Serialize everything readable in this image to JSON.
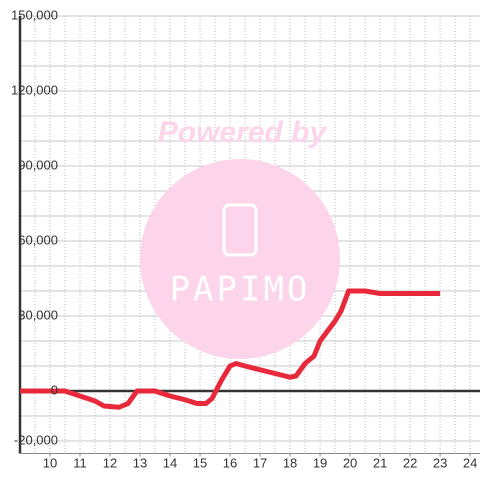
{
  "chart_data": {
    "type": "line",
    "watermark": {
      "top": "Powered by",
      "logo": "PAPIMO"
    },
    "x": [
      9,
      10.5,
      11,
      11.5,
      11.8,
      12.3,
      12.6,
      12.9,
      13.5,
      14,
      14.5,
      14.9,
      15.2,
      15.4,
      15.7,
      16,
      16.2,
      16.5,
      17,
      17.5,
      18,
      18.2,
      18.5,
      18.8,
      19,
      19.5,
      19.7,
      19.95,
      20.5,
      21,
      23
    ],
    "series": [
      {
        "color": "#e8293b",
        "values": [
          0,
          0,
          -2000,
          -4000,
          -6000,
          -6500,
          -5000,
          0,
          0,
          -2000,
          -3500,
          -5000,
          -5000,
          -3000,
          4000,
          10000,
          11000,
          10000,
          8500,
          7000,
          5500,
          6000,
          11000,
          14000,
          20000,
          28000,
          32000,
          40000,
          40000,
          39000,
          39000
        ]
      }
    ],
    "xlim": [
      9,
      24.33
    ],
    "xticks": [
      10,
      11,
      12,
      13,
      14,
      15,
      16,
      17,
      18,
      19,
      20,
      21,
      22,
      23,
      24
    ],
    "xgrid": [
      9.5,
      10,
      10.5,
      11,
      11.5,
      12,
      12.5,
      13,
      13.5,
      14,
      14.5,
      15,
      15.5,
      16,
      16.5,
      17,
      17.5,
      18,
      18.5,
      19,
      19.5,
      20,
      20.5,
      21,
      21.5,
      22,
      22.5,
      23,
      23.5,
      24
    ],
    "ylim": [
      -25000,
      150000
    ],
    "yticks": [
      {
        "value": -20000,
        "label": "-20,000"
      },
      0,
      {
        "value": 30000,
        "label": "30,000"
      },
      {
        "value": 60000,
        "label": "60,000"
      },
      {
        "value": 90000,
        "label": "90,000"
      },
      {
        "value": 120000,
        "label": "120,000"
      },
      {
        "value": 150000,
        "label": "150,000"
      }
    ],
    "ygrid": [
      -20000,
      -10000,
      0,
      10000,
      20000,
      30000,
      40000,
      50000,
      60000,
      70000,
      80000,
      90000,
      100000,
      110000,
      120000,
      130000,
      140000,
      150000
    ],
    "grid": true
  }
}
